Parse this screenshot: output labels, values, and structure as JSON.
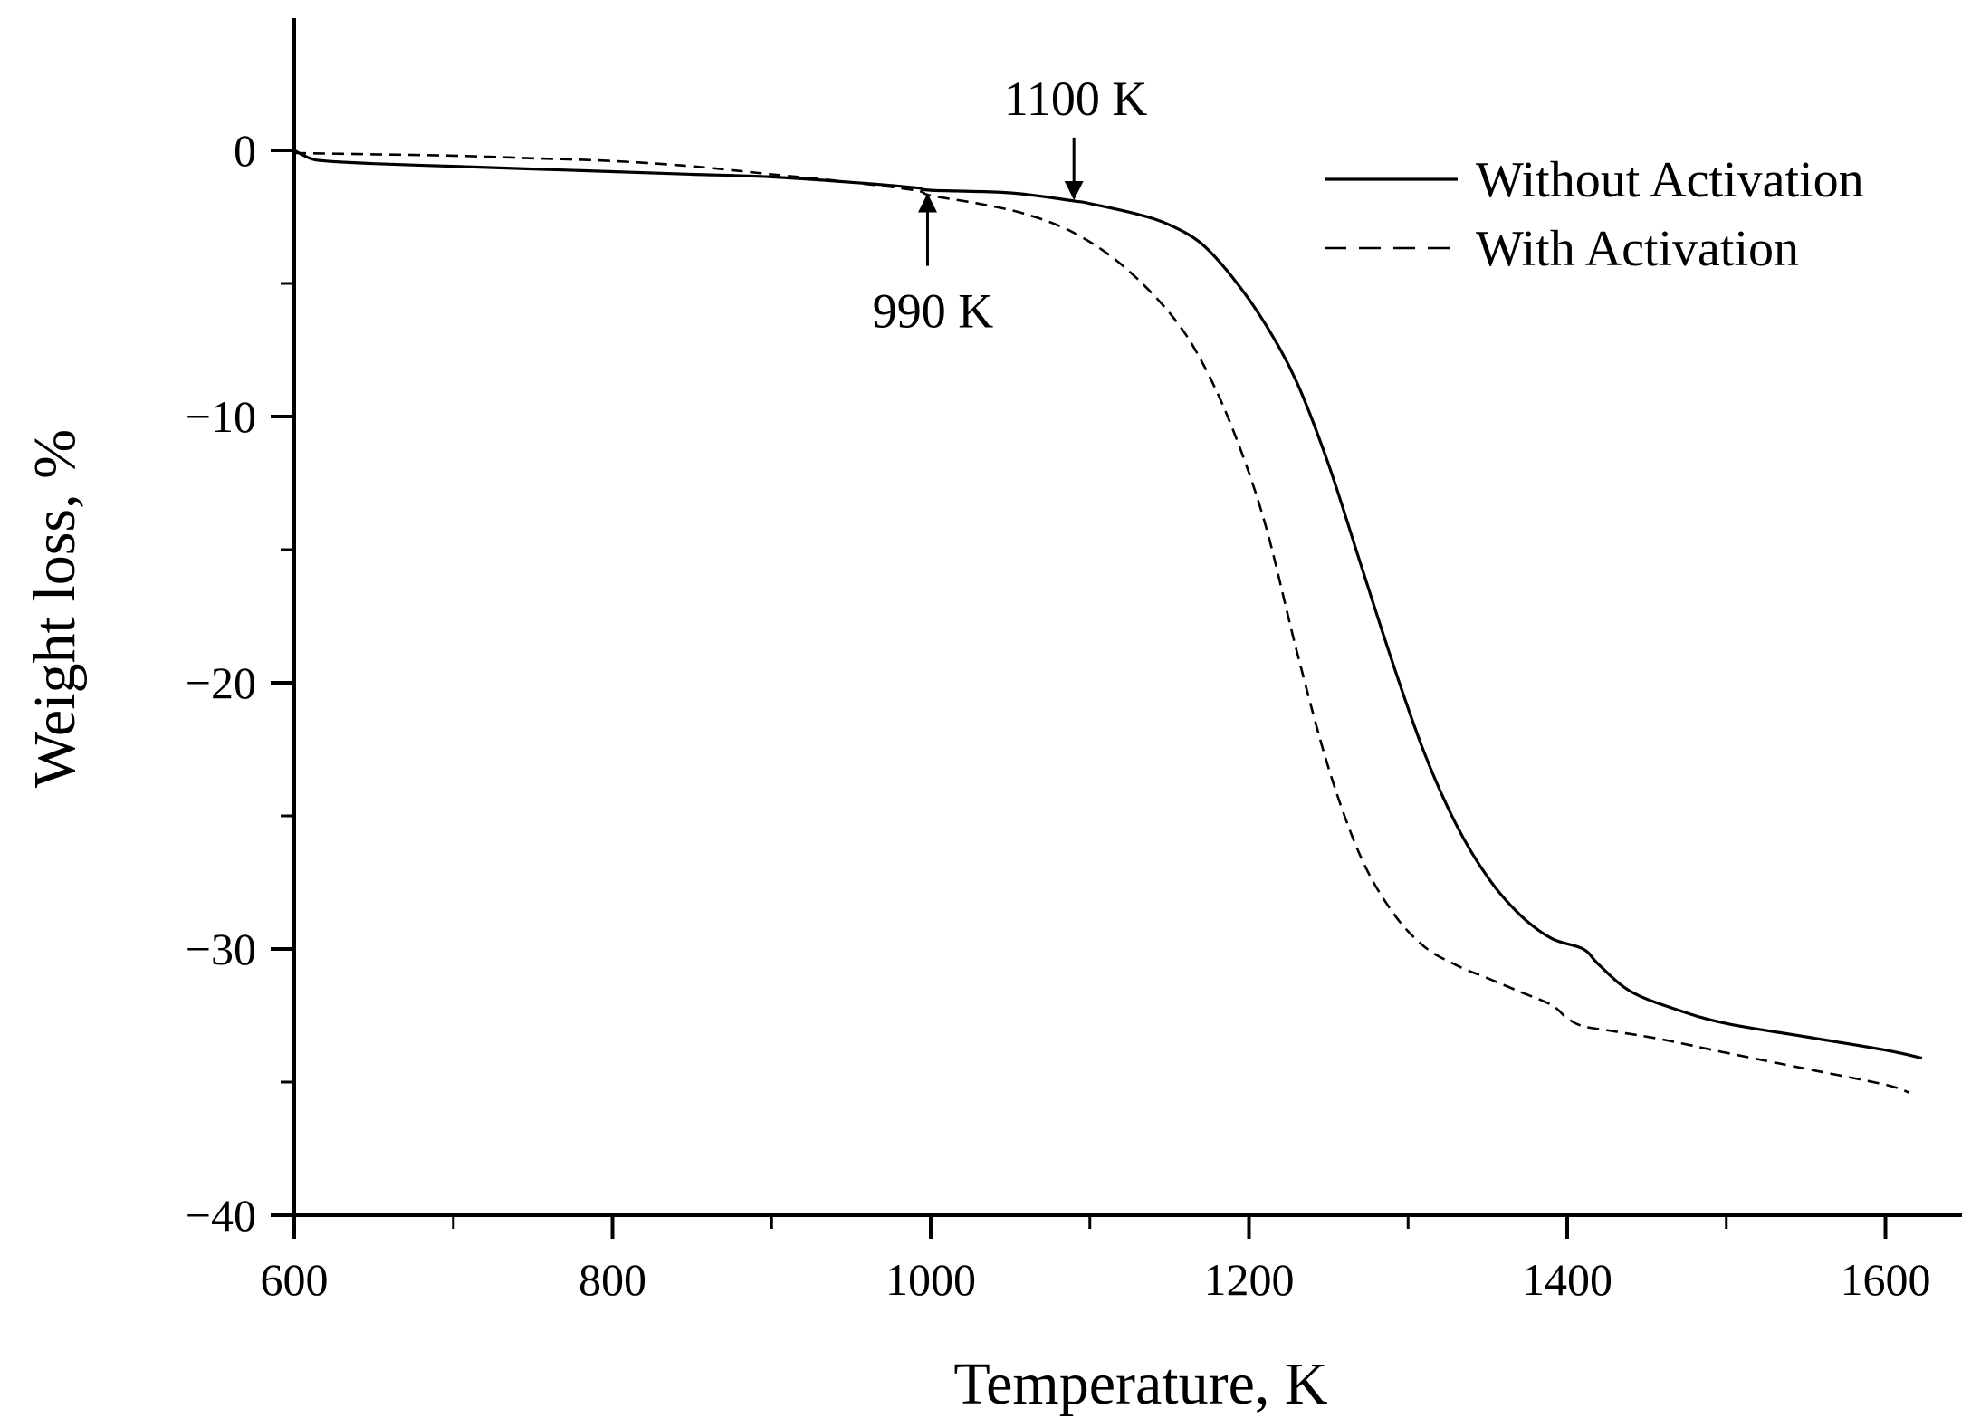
{
  "chart_data": {
    "type": "line",
    "title": "",
    "xlabel": "Temperature, K",
    "ylabel": "Weight loss, %",
    "xlim": [
      600,
      1625
    ],
    "ylim": [
      -40,
      5
    ],
    "x_ticks": [
      600,
      800,
      1000,
      1200,
      1400,
      1600
    ],
    "x_tick_labels": [
      "600",
      "800",
      "1000",
      "1200",
      "1400",
      "1600"
    ],
    "x_minor_ticks": [
      700,
      900,
      1100,
      1300,
      1500
    ],
    "y_ticks": [
      0,
      -10,
      -20,
      -30,
      -40
    ],
    "y_tick_labels": [
      "0",
      "−10",
      "−20",
      "−30",
      "−40"
    ],
    "y_minor_ticks": [
      -5,
      -15,
      -25,
      -35
    ],
    "grid": false,
    "legend_position": "top-right",
    "series": [
      {
        "name": "Without Activation",
        "style": "solid",
        "x": [
          600,
          610,
          620,
          650,
          700,
          750,
          800,
          850,
          900,
          950,
          990,
          1000,
          1050,
          1090,
          1100,
          1130,
          1150,
          1170,
          1190,
          1210,
          1230,
          1250,
          1270,
          1290,
          1310,
          1330,
          1350,
          1370,
          1390,
          1410,
          1420,
          1440,
          1470,
          1500,
          1550,
          1600,
          1623
        ],
        "y": [
          0,
          -0.3,
          -0.4,
          -0.5,
          -0.6,
          -0.7,
          -0.8,
          -0.9,
          -1.0,
          -1.2,
          -1.4,
          -1.5,
          -1.6,
          -1.9,
          -2.0,
          -2.4,
          -2.8,
          -3.5,
          -4.8,
          -6.5,
          -8.7,
          -11.8,
          -15.5,
          -19.2,
          -22.6,
          -25.3,
          -27.3,
          -28.7,
          -29.6,
          -30.0,
          -30.6,
          -31.6,
          -32.3,
          -32.8,
          -33.3,
          -33.8,
          -34.1
        ]
      },
      {
        "name": "With Activation",
        "style": "dashed",
        "x": [
          600,
          650,
          700,
          750,
          800,
          850,
          900,
          950,
          990,
          1000,
          1030,
          1060,
          1090,
          1120,
          1150,
          1170,
          1190,
          1210,
          1230,
          1250,
          1270,
          1290,
          1310,
          1330,
          1350,
          1370,
          1390,
          1400,
          1410,
          1430,
          1460,
          1500,
          1550,
          1600,
          1615
        ],
        "y": [
          -0.1,
          -0.15,
          -0.2,
          -0.3,
          -0.4,
          -0.6,
          -0.9,
          -1.2,
          -1.5,
          -1.7,
          -2.0,
          -2.4,
          -3.1,
          -4.3,
          -6.1,
          -7.9,
          -10.5,
          -14.0,
          -18.8,
          -23.2,
          -26.5,
          -28.6,
          -29.9,
          -30.6,
          -31.1,
          -31.6,
          -32.1,
          -32.6,
          -32.9,
          -33.1,
          -33.4,
          -33.9,
          -34.5,
          -35.1,
          -35.4
        ]
      }
    ],
    "annotations": [
      {
        "text": "1100 K",
        "x": 1090,
        "y": -1.9,
        "arrow": "down"
      },
      {
        "text": "990 K",
        "x": 998,
        "y": -1.55,
        "arrow": "up"
      }
    ]
  }
}
